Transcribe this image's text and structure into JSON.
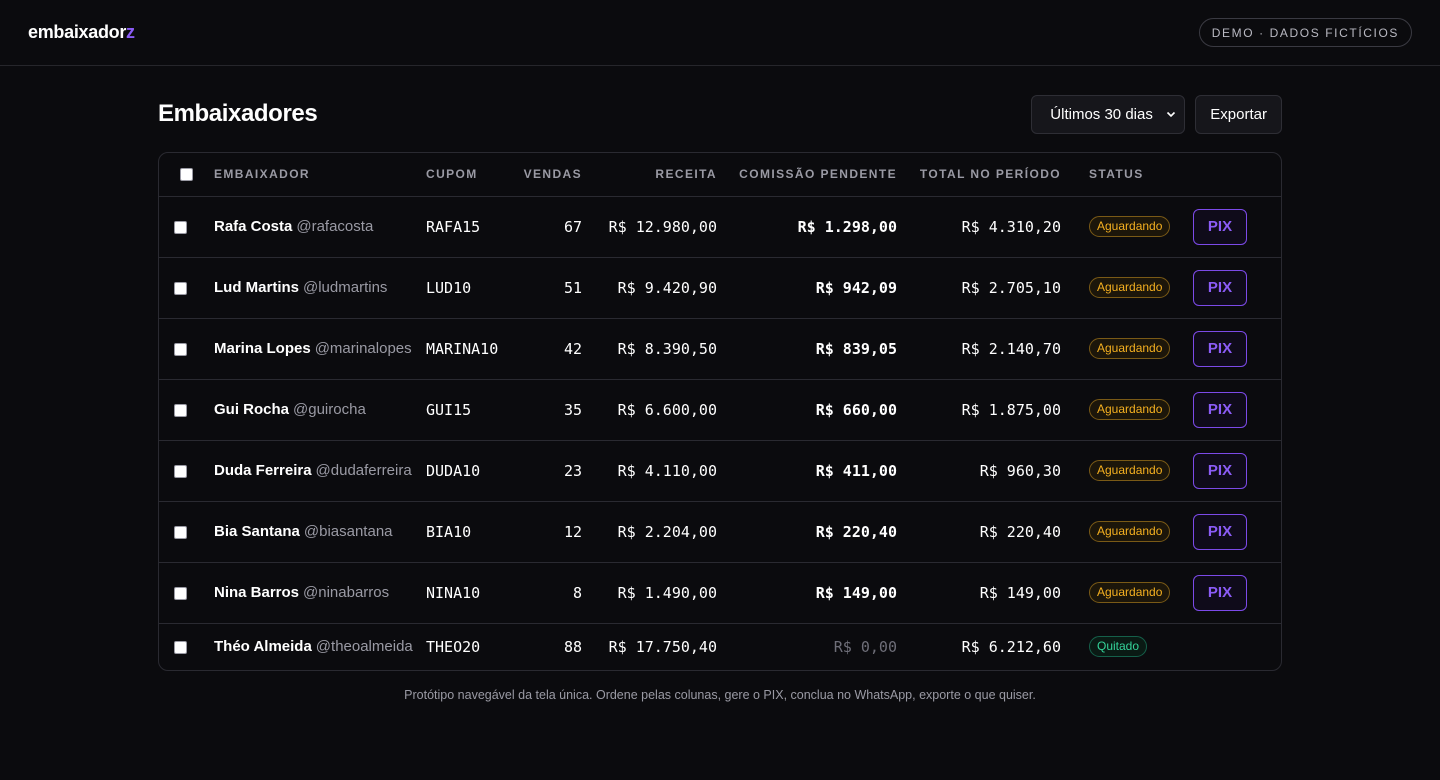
{
  "brand": {
    "logo_main": "embaixador",
    "logo_accent": "z",
    "accent_color": "#8b5cf6"
  },
  "demo_badge": "DEMO · DADOS FICTÍCIOS",
  "page_title": "Embaixadores",
  "controls": {
    "period_select": "Últimos 30 dias",
    "export_label": "Exportar"
  },
  "table": {
    "headers": {
      "embaixador": "EMBAIXADOR",
      "cupom": "CUPOM",
      "vendas": "VENDAS",
      "receita": "RECEITA",
      "comissao": "COMISSÃO PENDENTE",
      "total": "TOTAL NO PERÍODO",
      "status": "STATUS"
    },
    "rows": [
      {
        "name": "Rafa Costa",
        "handle": "@rafacosta",
        "cupom": "RAFA15",
        "vendas": "67",
        "receita": "R$ 12.980,00",
        "comissao": "R$ 1.298,00",
        "total": "R$ 4.310,20",
        "status": "Aguardando",
        "action": "PIX"
      },
      {
        "name": "Lud Martins",
        "handle": "@ludmartins",
        "cupom": "LUD10",
        "vendas": "51",
        "receita": "R$ 9.420,90",
        "comissao": "R$ 942,09",
        "total": "R$ 2.705,10",
        "status": "Aguardando",
        "action": "PIX"
      },
      {
        "name": "Marina Lopes",
        "handle": "@marinalopes",
        "cupom": "MARINA10",
        "vendas": "42",
        "receita": "R$ 8.390,50",
        "comissao": "R$ 839,05",
        "total": "R$ 2.140,70",
        "status": "Aguardando",
        "action": "PIX"
      },
      {
        "name": "Gui Rocha",
        "handle": "@guirocha",
        "cupom": "GUI15",
        "vendas": "35",
        "receita": "R$ 6.600,00",
        "comissao": "R$ 660,00",
        "total": "R$ 1.875,00",
        "status": "Aguardando",
        "action": "PIX"
      },
      {
        "name": "Duda Ferreira",
        "handle": "@dudaferreira",
        "cupom": "DUDA10",
        "vendas": "23",
        "receita": "R$ 4.110,00",
        "comissao": "R$ 411,00",
        "total": "R$ 960,30",
        "status": "Aguardando",
        "action": "PIX"
      },
      {
        "name": "Bia Santana",
        "handle": "@biasantana",
        "cupom": "BIA10",
        "vendas": "12",
        "receita": "R$ 2.204,00",
        "comissao": "R$ 220,40",
        "total": "R$ 220,40",
        "status": "Aguardando",
        "action": "PIX"
      },
      {
        "name": "Nina Barros",
        "handle": "@ninabarros",
        "cupom": "NINA10",
        "vendas": "8",
        "receita": "R$ 1.490,00",
        "comissao": "R$ 149,00",
        "total": "R$ 149,00",
        "status": "Aguardando",
        "action": "PIX"
      },
      {
        "name": "Théo Almeida",
        "handle": "@theoalmeida",
        "cupom": "THEO20",
        "vendas": "88",
        "receita": "R$ 17.750,40",
        "comissao": "R$ 0,00",
        "total": "R$ 6.212,60",
        "status": "Quitado",
        "action": ""
      }
    ]
  },
  "footer_note": "Protótipo navegável da tela única. Ordene pelas colunas, gere o PIX, conclua no WhatsApp, exporte o que quiser.",
  "colors": {
    "waiting": "#f5b020",
    "paid": "#34d399"
  }
}
